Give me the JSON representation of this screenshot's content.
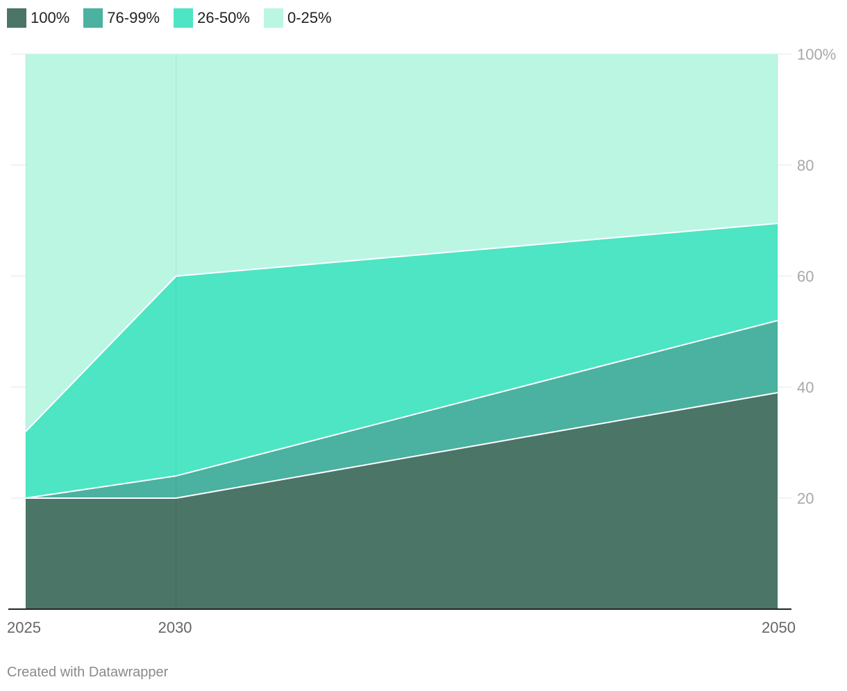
{
  "chart_data": {
    "type": "area",
    "stacked": true,
    "x": [
      2025,
      2030,
      2050
    ],
    "x_tick_labels": [
      "2025",
      "2030",
      "2050"
    ],
    "ylim": [
      0,
      100
    ],
    "y_ticks": [
      20,
      40,
      60,
      80,
      100
    ],
    "y_tick_labels": [
      "20",
      "40",
      "60",
      "80",
      "100%"
    ],
    "y_axis_side": "right",
    "legend_position": "top-left",
    "series": [
      {
        "name": "100%",
        "color": "#4b7566",
        "values": [
          20,
          20,
          39
        ]
      },
      {
        "name": "76-99%",
        "color": "#4bb1a0",
        "values": [
          0,
          4,
          13
        ]
      },
      {
        "name": "26-50%",
        "color": "#4de5c4",
        "values": [
          12,
          36,
          17.5
        ]
      },
      {
        "name": "0-25%",
        "color": "#bbf6e3",
        "values": [
          68,
          40,
          30.5
        ]
      }
    ]
  },
  "footer": {
    "credit": "Created with Datawrapper"
  }
}
